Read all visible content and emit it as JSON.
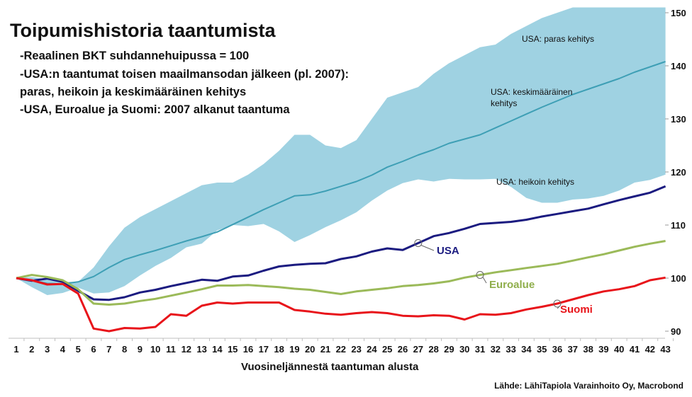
{
  "title": "Toipumishistoria taantumista",
  "subtitle_lines": [
    "-Reaalinen BKT suhdannehuipussa = 100",
    "-USA:n taantumat toisen maailmansodan jälkeen (pl. 2007):",
    "paras, heikoin ja keskimääräinen kehitys",
    "-USA, Euroalue ja Suomi: 2007 alkanut taantuma"
  ],
  "source": "Lähde: LähiTapiola Varainhoito Oy, Macrobond",
  "colors": {
    "band": "#9fd2e2",
    "avg": "#3e9fb5",
    "usa": "#1b1b80",
    "euro": "#9bba59",
    "suomi": "#e8141a"
  },
  "chart_data": {
    "type": "line",
    "xlabel": "Vuosineljännestä taantuman alusta",
    "ylabel": "",
    "x": [
      1,
      2,
      3,
      4,
      5,
      6,
      7,
      8,
      9,
      10,
      11,
      12,
      13,
      14,
      15,
      16,
      17,
      18,
      19,
      20,
      21,
      22,
      23,
      24,
      25,
      26,
      27,
      28,
      29,
      30,
      31,
      32,
      33,
      34,
      35,
      36,
      37,
      38,
      39,
      40,
      41,
      42,
      43
    ],
    "ylim": [
      88,
      151
    ],
    "yticks": [
      90,
      100,
      110,
      120,
      130,
      140,
      150
    ],
    "band": {
      "upper_label": "USA: paras kehitys",
      "lower_label": "USA: heikoin kehitys",
      "upper": [
        100,
        100.2,
        99.8,
        99.3,
        99.3,
        102,
        106,
        109.5,
        111.5,
        113,
        114.5,
        116,
        117.5,
        118,
        118,
        119.5,
        121.5,
        124,
        127,
        127,
        125,
        124.5,
        126,
        130,
        134,
        135,
        136,
        138.5,
        140.5,
        142,
        143.5,
        144,
        146,
        147.5,
        149,
        150,
        151,
        151,
        151,
        151,
        151,
        151,
        151
      ],
      "lower": [
        100,
        98.3,
        96.8,
        97.2,
        98.2,
        97.1,
        97.3,
        98.5,
        100.5,
        102.3,
        103.8,
        105.8,
        106.5,
        109,
        110,
        109.8,
        110.2,
        108.8,
        106.8,
        108.1,
        109.6,
        110.9,
        112.4,
        114.6,
        116.5,
        117.9,
        118.6,
        118.2,
        118.7,
        118.6,
        118.6,
        118.7,
        117.2,
        115.1,
        114.2,
        114.2,
        114.8,
        115,
        115.5,
        116.5,
        118,
        118.5,
        119.5
      ]
    },
    "series": [
      {
        "name": "USA: keskimääräinen kehitys",
        "label_lines": [
          "USA: keskimääräinen",
          "kehitys"
        ],
        "values": [
          100,
          99.6,
          99.0,
          98.9,
          99.3,
          100.3,
          102.0,
          103.5,
          104.4,
          105.2,
          106.1,
          107.0,
          107.8,
          108.7,
          110.1,
          111.5,
          112.9,
          114.2,
          115.5,
          115.7,
          116.4,
          117.3,
          118.2,
          119.4,
          120.9,
          122.0,
          123.2,
          124.2,
          125.4,
          126.2,
          127.0,
          128.3,
          129.6,
          130.9,
          132.2,
          133.4,
          134.6,
          135.6,
          136.6,
          137.6,
          138.8,
          139.8,
          140.8
        ]
      },
      {
        "name": "USA",
        "values": [
          100,
          99.5,
          99.9,
          99.3,
          97.6,
          96.0,
          95.9,
          96.4,
          97.3,
          97.8,
          98.5,
          99.1,
          99.7,
          99.5,
          100.3,
          100.5,
          101.4,
          102.2,
          102.5,
          102.7,
          102.8,
          103.6,
          104.1,
          105.0,
          105.6,
          105.3,
          106.6,
          107.9,
          108.5,
          109.3,
          110.2,
          110.4,
          110.6,
          111.0,
          111.6,
          112.1,
          112.6,
          113.1,
          113.9,
          114.7,
          115.4,
          116.1,
          117.3
        ]
      },
      {
        "name": "Euroalue",
        "values": [
          100,
          100.6,
          100.2,
          99.6,
          97.9,
          95.2,
          95.0,
          95.2,
          95.7,
          96.1,
          96.7,
          97.3,
          97.9,
          98.6,
          98.6,
          98.7,
          98.5,
          98.3,
          98.0,
          97.8,
          97.4,
          97.0,
          97.5,
          97.8,
          98.1,
          98.5,
          98.7,
          99.0,
          99.4,
          100.1,
          100.6,
          101.1,
          101.5,
          101.9,
          102.3,
          102.7,
          103.3,
          103.9,
          104.5,
          105.2,
          105.9,
          106.5,
          107.0
        ]
      },
      {
        "name": "Suomi",
        "values": [
          100,
          99.6,
          98.8,
          98.9,
          97.1,
          90.5,
          90.0,
          90.6,
          90.5,
          90.8,
          93.2,
          92.9,
          94.8,
          95.4,
          95.2,
          95.4,
          95.4,
          95.4,
          94.0,
          93.7,
          93.3,
          93.1,
          93.4,
          93.6,
          93.4,
          92.9,
          92.8,
          93.0,
          92.9,
          92.2,
          93.2,
          93.1,
          93.4,
          94.1,
          94.6,
          95.2,
          96.0,
          96.8,
          97.5,
          97.9,
          98.5,
          99.6,
          100.1
        ]
      }
    ]
  }
}
